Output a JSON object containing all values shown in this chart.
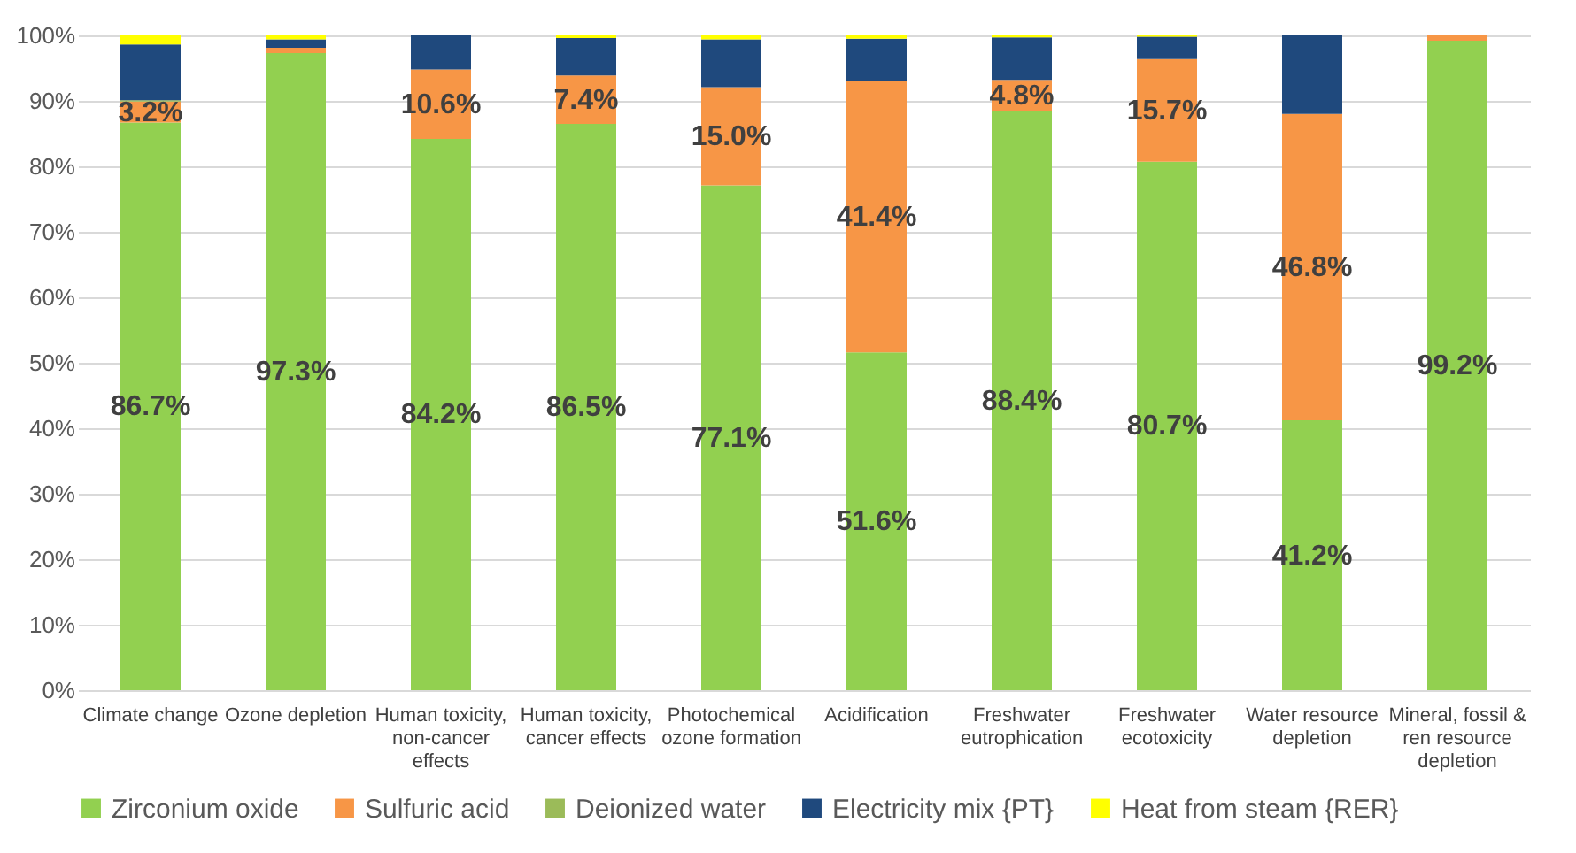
{
  "chart_data": {
    "type": "bar",
    "stacked": true,
    "categories": [
      "Climate change",
      "Ozone depletion",
      "Human toxicity, non-cancer effects",
      "Human toxicity, cancer effects",
      "Photochemical ozone formation",
      "Acidification",
      "Freshwater eutrophication",
      "Freshwater ecotoxicity",
      "Water resource depletion",
      "Mineral, fossil & ren resource depletion"
    ],
    "series": [
      {
        "name": "Zirconium oxide",
        "color": "#92d050",
        "values": [
          86.7,
          97.3,
          84.2,
          86.5,
          77.1,
          51.6,
          88.4,
          80.7,
          41.2,
          99.2
        ],
        "value_labels": [
          "86.7%",
          "97.3%",
          "84.2%",
          "86.5%",
          "77.1%",
          "51.6%",
          "88.4%",
          "80.7%",
          "41.2%",
          "99.2%"
        ]
      },
      {
        "name": "Sulfuric acid",
        "color": "#f79646",
        "values": [
          3.2,
          0.8,
          10.6,
          7.4,
          15.0,
          41.4,
          4.8,
          15.7,
          46.8,
          0.8
        ],
        "value_labels": [
          "3.2%",
          null,
          "10.6%",
          "7.4%",
          "15.0%",
          "41.4%",
          "4.8%",
          "15.7%",
          "46.8%",
          null
        ]
      },
      {
        "name": "Deionized water",
        "color": "#9bbb59",
        "values": [
          0.2,
          null,
          null,
          null,
          null,
          null,
          null,
          null,
          null,
          null
        ]
      },
      {
        "name": "Electricity mix {PT}",
        "color": "#1f497d",
        "values": [
          8.5,
          1.3,
          5.2,
          5.7,
          7.3,
          6.5,
          6.5,
          3.4,
          12.0,
          null
        ]
      },
      {
        "name": "Heat from steam {RER}",
        "color": "#ffff00",
        "values": [
          1.4,
          0.6,
          null,
          0.4,
          0.6,
          0.5,
          0.3,
          0.2,
          null,
          null
        ]
      }
    ],
    "ylim": [
      0,
      100
    ],
    "yticks": [
      {
        "value": 0,
        "label": "0%"
      },
      {
        "value": 10,
        "label": "10%"
      },
      {
        "value": 20,
        "label": "20%"
      },
      {
        "value": 30,
        "label": "30%"
      },
      {
        "value": 40,
        "label": "40%"
      },
      {
        "value": 50,
        "label": "50%"
      },
      {
        "value": 60,
        "label": "60%"
      },
      {
        "value": 70,
        "label": "70%"
      },
      {
        "value": 80,
        "label": "80%"
      },
      {
        "value": 90,
        "label": "90%"
      },
      {
        "value": 100,
        "label": "100%"
      }
    ],
    "grid": "y",
    "legend": "bottom"
  }
}
